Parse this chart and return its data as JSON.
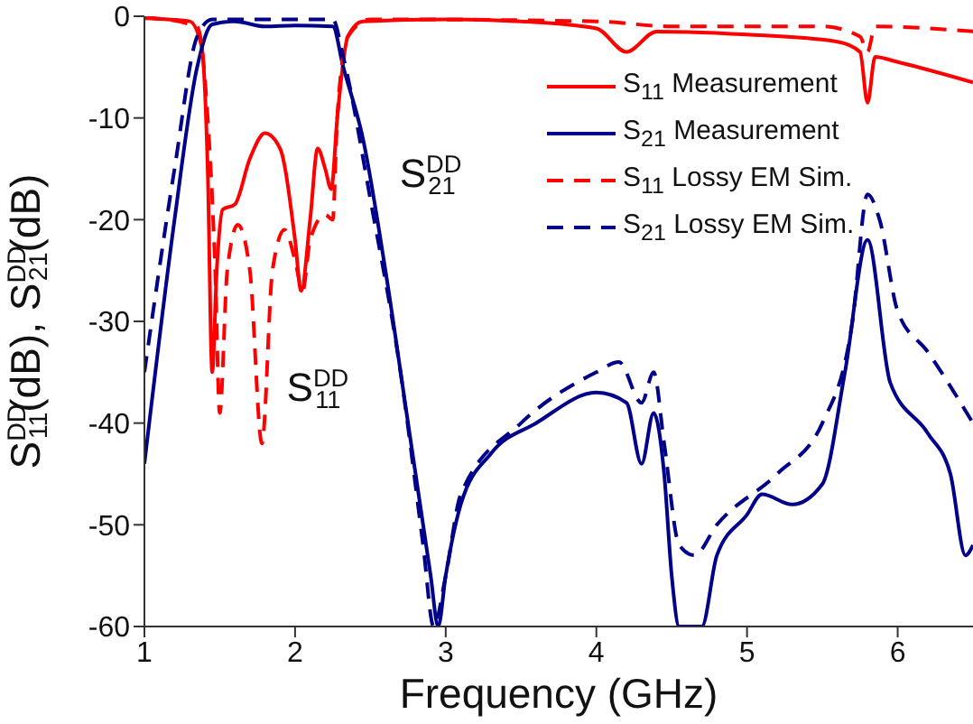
{
  "chart_data": {
    "type": "line",
    "xlabel": "Frequency (GHz)",
    "ylabel": "S$^{DD}$$_{11}$(dB), S$^{DD}$$_{21}$(dB)",
    "xlim": [
      1,
      6.5
    ],
    "ylim": [
      -60,
      0
    ],
    "xticks": [
      1,
      2,
      3,
      4,
      5,
      6
    ],
    "yticks": [
      -60,
      -50,
      -40,
      -30,
      -20,
      -10,
      0
    ],
    "legend": "top right",
    "marker": "none",
    "annotations": [
      {
        "text": "S$^{DD}$$_{21}$",
        "x": 2.55,
        "y": -15
      },
      {
        "text": "S$^{DD}$$_{11}$",
        "x": 1.8,
        "y": -36
      }
    ],
    "series": [
      {
        "name": "S$_{11}$ Measurement",
        "color": "#ff0000",
        "line_style": "solid",
        "x": [
          1,
          1.3,
          1.38,
          1.42,
          1.45,
          1.48,
          1.52,
          1.6,
          1.7,
          1.8,
          1.9,
          2.0,
          2.04,
          2.1,
          2.15,
          2.2,
          2.24,
          2.28,
          2.35,
          2.45,
          3,
          3.5,
          4,
          4.2,
          4.4,
          5,
          5.6,
          5.75,
          5.8,
          5.85,
          6.0,
          6.5
        ],
        "values": [
          -0.2,
          -0.5,
          -3,
          -15,
          -35,
          -25,
          -19,
          -18.5,
          -14,
          -11.5,
          -13,
          -22,
          -27,
          -20,
          -13,
          -15,
          -17,
          -10,
          -2,
          -0.5,
          -0.3,
          -0.5,
          -1.2,
          -3.5,
          -1.5,
          -1.8,
          -2.5,
          -3.5,
          -8.5,
          -4,
          -4.5,
          -6.5
        ]
      },
      {
        "name": "S$_{21}$ Measurement",
        "color": "#00008b",
        "line_style": "solid",
        "x": [
          1,
          1.2,
          1.35,
          1.45,
          1.6,
          1.8,
          2.0,
          2.25,
          2.32,
          2.45,
          2.6,
          2.75,
          2.9,
          2.95,
          3.0,
          3.1,
          3.3,
          3.6,
          4.0,
          4.2,
          4.3,
          4.38,
          4.45,
          4.5,
          4.55,
          4.7,
          4.8,
          5.0,
          5.1,
          5.3,
          5.5,
          5.65,
          5.8,
          5.95,
          6.2,
          6.35,
          6.45,
          6.5
        ],
        "values": [
          -44,
          -20,
          -5,
          -0.8,
          -0.5,
          -1,
          -0.9,
          -1,
          -5,
          -12,
          -25,
          -40,
          -55,
          -60,
          -55,
          -48,
          -43,
          -40,
          -37,
          -38,
          -44,
          -39,
          -45,
          -55,
          -60,
          -60,
          -53,
          -49,
          -47,
          -48,
          -46,
          -35,
          -22,
          -36,
          -41,
          -45,
          -53,
          -52
        ]
      },
      {
        "name": "S$_{11}$ Lossy EM Sim.",
        "color": "#ff0000",
        "line_style": "dashed",
        "x": [
          1,
          1.35,
          1.42,
          1.47,
          1.5,
          1.55,
          1.62,
          1.7,
          1.78,
          1.85,
          1.93,
          2.0,
          2.05,
          2.1,
          2.2,
          2.25,
          2.28,
          2.35,
          2.5,
          4,
          4.5,
          5.5,
          5.75,
          5.8,
          5.85,
          6.5
        ],
        "values": [
          -0.1,
          -1,
          -10,
          -25,
          -39,
          -25,
          -20.5,
          -25,
          -42,
          -25,
          -21,
          -24,
          -27,
          -22,
          -19.5,
          -20,
          -10,
          -2,
          -0.3,
          -0.5,
          -1,
          -1,
          -2,
          -3.5,
          -1,
          -1.5
        ]
      },
      {
        "name": "S$_{21}$ Lossy EM Sim.",
        "color": "#00008b",
        "line_style": "dashed",
        "x": [
          1,
          1.2,
          1.35,
          1.45,
          2.25,
          2.32,
          2.5,
          2.7,
          2.85,
          2.92,
          3.0,
          3.1,
          3.5,
          4.0,
          4.15,
          4.3,
          4.38,
          4.45,
          4.55,
          4.65,
          4.8,
          5.2,
          5.5,
          5.7,
          5.8,
          5.88,
          6.0,
          6.2,
          6.5
        ],
        "values": [
          -35,
          -15,
          -2,
          -0.3,
          -0.3,
          -4,
          -18,
          -35,
          -52,
          -60,
          -55,
          -47,
          -40,
          -35,
          -34,
          -38,
          -35,
          -42,
          -52,
          -53,
          -50,
          -45,
          -40,
          -30,
          -17.5,
          -20,
          -29,
          -33,
          -40
        ]
      }
    ]
  }
}
